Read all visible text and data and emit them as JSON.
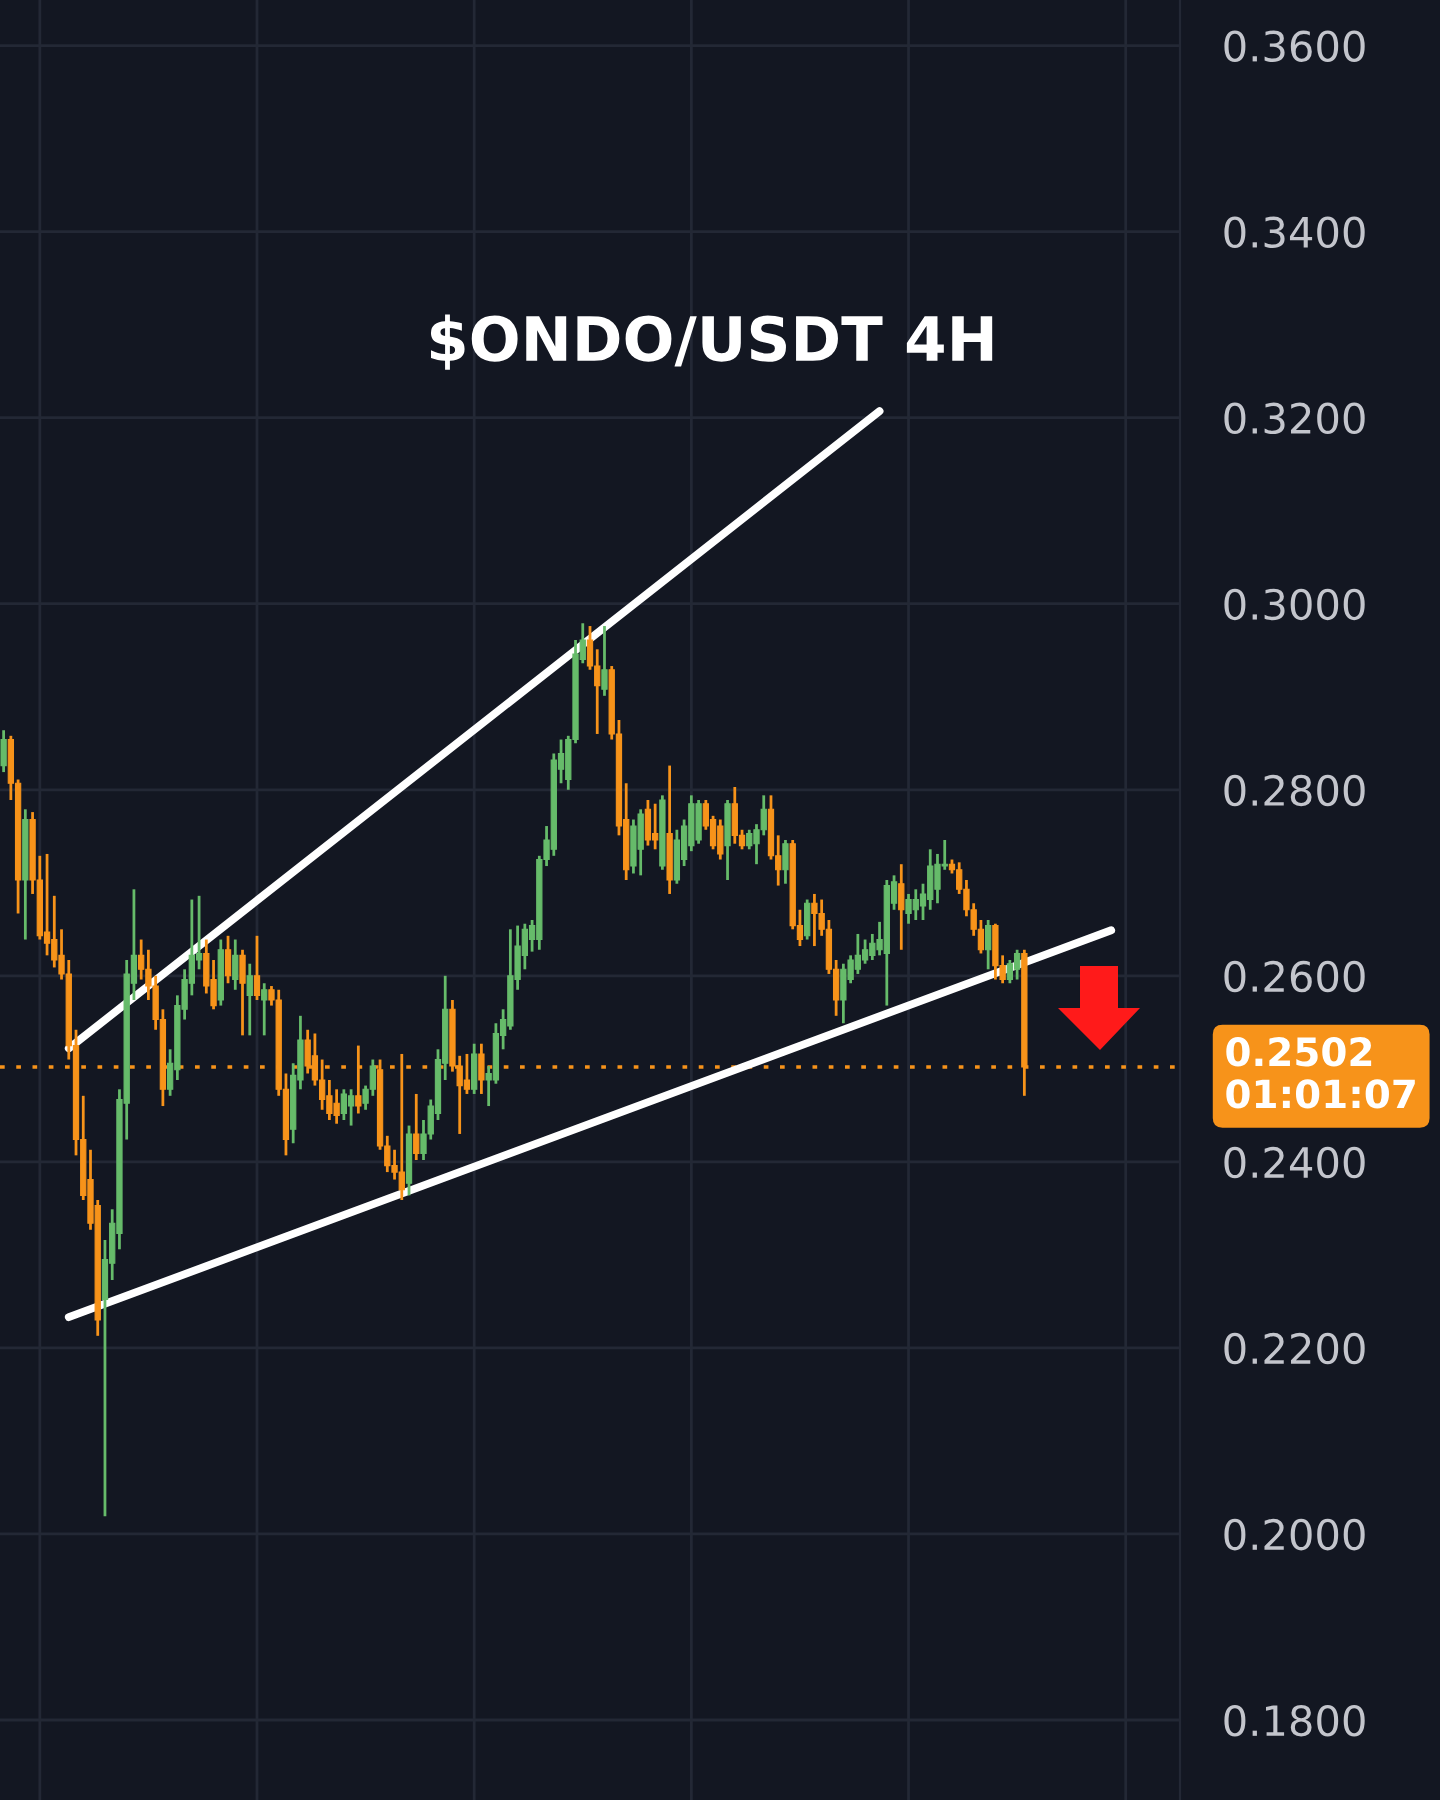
{
  "chart_data": {
    "type": "candlestick",
    "title": "$ONDO/USDT 4H",
    "categories": [
      null,
      null,
      null,
      null,
      null,
      null,
      null,
      null,
      null,
      null,
      null,
      null,
      null,
      null,
      null,
      null,
      null,
      null,
      null,
      null,
      null,
      null,
      null,
      null,
      null,
      null,
      null,
      null,
      null,
      null,
      null,
      null,
      null,
      null,
      null,
      null,
      null,
      null,
      null,
      null,
      null,
      null,
      null,
      null,
      null,
      null,
      null,
      null,
      null,
      null,
      null,
      null,
      null,
      null,
      null,
      null,
      null,
      null,
      null,
      null,
      null,
      null,
      null,
      null,
      null,
      null,
      null,
      null,
      null,
      null,
      null,
      null,
      null,
      null,
      null,
      null,
      null,
      null,
      null,
      null,
      null,
      null,
      null,
      null,
      null,
      null,
      null,
      null,
      null,
      null,
      null,
      null,
      null,
      null,
      null,
      null,
      null,
      null,
      null,
      null,
      null,
      null,
      null,
      null,
      null,
      null,
      null,
      null,
      null,
      null,
      null,
      null,
      null,
      null,
      null,
      null,
      null,
      null,
      null,
      null,
      null,
      null,
      null,
      null,
      null,
      null,
      null,
      null,
      null,
      null,
      null,
      null,
      null,
      null,
      null,
      null,
      null,
      null,
      null,
      null,
      null,
      null,
      null,
      null,
      null,
      null,
      null,
      null,
      null,
      null,
      null,
      null,
      null,
      null,
      null,
      null,
      null,
      null,
      null,
      null,
      null,
      null,
      null
    ],
    "ohlc": [
      [
        0.2826,
        0.2864,
        0.2819,
        0.2854
      ],
      [
        0.2854,
        0.2858,
        0.2789,
        0.2807
      ],
      [
        0.2807,
        0.2811,
        0.2667,
        0.2703
      ],
      [
        0.2703,
        0.2779,
        0.2639,
        0.2768
      ],
      [
        0.2768,
        0.2776,
        0.2688,
        0.2703
      ],
      [
        0.2703,
        0.2729,
        0.2639,
        0.2643
      ],
      [
        0.2647,
        0.2731,
        0.2622,
        0.2635
      ],
      [
        0.2639,
        0.2686,
        0.2609,
        0.2617
      ],
      [
        0.2622,
        0.265,
        0.2596,
        0.2602
      ],
      [
        0.2602,
        0.2617,
        0.251,
        0.2525
      ],
      [
        0.2525,
        0.2542,
        0.2407,
        0.2424
      ],
      [
        0.2424,
        0.2471,
        0.2359,
        0.2364
      ],
      [
        0.2381,
        0.2413,
        0.2327,
        0.2334
      ],
      [
        0.2353,
        0.2359,
        0.2213,
        0.223
      ],
      [
        0.2252,
        0.2316,
        0.2019,
        0.2295
      ],
      [
        0.2291,
        0.2349,
        0.2273,
        0.2334
      ],
      [
        0.2323,
        0.2478,
        0.2306,
        0.2467
      ],
      [
        0.2463,
        0.2617,
        0.2424,
        0.2602
      ],
      [
        0.2592,
        0.2693,
        0.2574,
        0.2622
      ],
      [
        0.2622,
        0.2639,
        0.2596,
        0.2607
      ],
      [
        0.2607,
        0.2628,
        0.2574,
        0.2589
      ],
      [
        0.2589,
        0.26,
        0.2542,
        0.2553
      ],
      [
        0.2553,
        0.2564,
        0.246,
        0.2478
      ],
      [
        0.2478,
        0.2521,
        0.2471,
        0.2506
      ],
      [
        0.2499,
        0.2579,
        0.2488,
        0.2568
      ],
      [
        0.2564,
        0.2607,
        0.2553,
        0.2596
      ],
      [
        0.2592,
        0.2682,
        0.2579,
        0.2622
      ],
      [
        0.2617,
        0.2686,
        0.2607,
        0.2624
      ],
      [
        0.2624,
        0.2639,
        0.2581,
        0.2589
      ],
      [
        0.2596,
        0.2617,
        0.2564,
        0.2568
      ],
      [
        0.2574,
        0.2639,
        0.2568,
        0.2628
      ],
      [
        0.2628,
        0.2643,
        0.2592,
        0.26
      ],
      [
        0.2596,
        0.2639,
        0.2585,
        0.2622
      ],
      [
        0.2622,
        0.2628,
        0.2536,
        0.2592
      ],
      [
        0.2579,
        0.2613,
        0.2536,
        0.26
      ],
      [
        0.26,
        0.2643,
        0.2574,
        0.2579
      ],
      [
        0.2574,
        0.2592,
        0.2536,
        0.2585
      ],
      [
        0.2585,
        0.2589,
        0.2568,
        0.2574
      ],
      [
        0.2574,
        0.2585,
        0.2471,
        0.2478
      ],
      [
        0.2478,
        0.2495,
        0.2407,
        0.2424
      ],
      [
        0.2435,
        0.2506,
        0.242,
        0.2493
      ],
      [
        0.2488,
        0.2557,
        0.2478,
        0.2531
      ],
      [
        0.2531,
        0.2542,
        0.2495,
        0.2503
      ],
      [
        0.2514,
        0.2538,
        0.2482,
        0.2488
      ],
      [
        0.2488,
        0.251,
        0.2456,
        0.2467
      ],
      [
        0.2471,
        0.2488,
        0.2445,
        0.2452
      ],
      [
        0.2463,
        0.2478,
        0.2441,
        0.245
      ],
      [
        0.2452,
        0.2478,
        0.2445,
        0.2473
      ],
      [
        0.246,
        0.2478,
        0.2439,
        0.2471
      ],
      [
        0.2471,
        0.2525,
        0.2452,
        0.246
      ],
      [
        0.2463,
        0.2482,
        0.2456,
        0.2478
      ],
      [
        0.2478,
        0.251,
        0.2471,
        0.2503
      ],
      [
        0.2499,
        0.251,
        0.2413,
        0.2417
      ],
      [
        0.2417,
        0.2428,
        0.2389,
        0.2396
      ],
      [
        0.2396,
        0.2413,
        0.2381,
        0.2389
      ],
      [
        0.2389,
        0.2516,
        0.2359,
        0.237
      ],
      [
        0.2377,
        0.2439,
        0.2364,
        0.243
      ],
      [
        0.243,
        0.2473,
        0.2402,
        0.2409
      ],
      [
        0.2409,
        0.2445,
        0.2402,
        0.243
      ],
      [
        0.243,
        0.2467,
        0.2424,
        0.246
      ],
      [
        0.2452,
        0.2521,
        0.2445,
        0.251
      ],
      [
        0.2506,
        0.26,
        0.2488,
        0.2564
      ],
      [
        0.2564,
        0.2574,
        0.2497,
        0.2503
      ],
      [
        0.2503,
        0.2514,
        0.243,
        0.2482
      ],
      [
        0.2488,
        0.2516,
        0.2473,
        0.2478
      ],
      [
        0.2478,
        0.2527,
        0.2473,
        0.2516
      ],
      [
        0.2516,
        0.2527,
        0.2473,
        0.2488
      ],
      [
        0.2488,
        0.2503,
        0.246,
        0.2495
      ],
      [
        0.2488,
        0.2549,
        0.2484,
        0.2538
      ],
      [
        0.2536,
        0.2564,
        0.2521,
        0.2553
      ],
      [
        0.2546,
        0.265,
        0.2542,
        0.26
      ],
      [
        0.2596,
        0.2654,
        0.2585,
        0.2632
      ],
      [
        0.2622,
        0.2656,
        0.2607,
        0.265
      ],
      [
        0.2639,
        0.266,
        0.2626,
        0.2654
      ],
      [
        0.2639,
        0.2729,
        0.2628,
        0.2725
      ],
      [
        0.2725,
        0.2761,
        0.2718,
        0.2746
      ],
      [
        0.2736,
        0.2839,
        0.2729,
        0.2832
      ],
      [
        0.2822,
        0.2854,
        0.2807,
        0.2839
      ],
      [
        0.2811,
        0.2858,
        0.28,
        0.2854
      ],
      [
        0.2854,
        0.2961,
        0.285,
        0.2946
      ],
      [
        0.294,
        0.2979,
        0.2936,
        0.2961
      ],
      [
        0.2961,
        0.2976,
        0.2929,
        0.2933
      ],
      [
        0.2933,
        0.2951,
        0.286,
        0.2912
      ],
      [
        0.2908,
        0.2976,
        0.2901,
        0.2929
      ],
      [
        0.2929,
        0.2933,
        0.2854,
        0.286
      ],
      [
        0.286,
        0.2875,
        0.2751,
        0.2761
      ],
      [
        0.2768,
        0.2807,
        0.2703,
        0.2714
      ],
      [
        0.2718,
        0.2768,
        0.271,
        0.2761
      ],
      [
        0.2736,
        0.2779,
        0.2708,
        0.2774
      ],
      [
        0.2779,
        0.2789,
        0.274,
        0.2746
      ],
      [
        0.2753,
        0.2785,
        0.2736,
        0.2746
      ],
      [
        0.2718,
        0.2794,
        0.2714,
        0.2789
      ],
      [
        0.2753,
        0.2826,
        0.2688,
        0.2703
      ],
      [
        0.2703,
        0.2757,
        0.2699,
        0.2746
      ],
      [
        0.2725,
        0.2768,
        0.2718,
        0.2761
      ],
      [
        0.274,
        0.2794,
        0.2734,
        0.2785
      ],
      [
        0.2746,
        0.2789,
        0.2742,
        0.2785
      ],
      [
        0.2785,
        0.2789,
        0.2757,
        0.2761
      ],
      [
        0.2768,
        0.2772,
        0.2736,
        0.274
      ],
      [
        0.2761,
        0.2768,
        0.2725,
        0.2731
      ],
      [
        0.274,
        0.2789,
        0.2703,
        0.2785
      ],
      [
        0.2785,
        0.2803,
        0.2742,
        0.2751
      ],
      [
        0.2751,
        0.2757,
        0.2736,
        0.274
      ],
      [
        0.274,
        0.2757,
        0.2736,
        0.2753
      ],
      [
        0.2742,
        0.2763,
        0.272,
        0.2757
      ],
      [
        0.2757,
        0.2794,
        0.2751,
        0.2779
      ],
      [
        0.2779,
        0.2794,
        0.2725,
        0.2729
      ],
      [
        0.2729,
        0.2751,
        0.2697,
        0.2714
      ],
      [
        0.2714,
        0.2746,
        0.2699,
        0.2742
      ],
      [
        0.2742,
        0.2746,
        0.265,
        0.2654
      ],
      [
        0.2654,
        0.2671,
        0.2632,
        0.2639
      ],
      [
        0.2643,
        0.2682,
        0.2639,
        0.2678
      ],
      [
        0.2678,
        0.2688,
        0.2632,
        0.2667
      ],
      [
        0.2667,
        0.2682,
        0.2643,
        0.265
      ],
      [
        0.265,
        0.266,
        0.2602,
        0.2607
      ],
      [
        0.2607,
        0.2617,
        0.2557,
        0.2574
      ],
      [
        0.2574,
        0.2613,
        0.2549,
        0.2607
      ],
      [
        0.2596,
        0.2622,
        0.2592,
        0.2617
      ],
      [
        0.2607,
        0.2645,
        0.2602,
        0.2622
      ],
      [
        0.2617,
        0.2639,
        0.2613,
        0.2628
      ],
      [
        0.2622,
        0.2645,
        0.2617,
        0.2635
      ],
      [
        0.2628,
        0.2658,
        0.2622,
        0.2639
      ],
      [
        0.2624,
        0.2703,
        0.2568,
        0.2697
      ],
      [
        0.2678,
        0.2708,
        0.2671,
        0.2701
      ],
      [
        0.2699,
        0.272,
        0.2628,
        0.2671
      ],
      [
        0.2667,
        0.2688,
        0.2656,
        0.2682
      ],
      [
        0.2671,
        0.2693,
        0.266,
        0.2682
      ],
      [
        0.2675,
        0.2699,
        0.266,
        0.2688
      ],
      [
        0.2682,
        0.2736,
        0.2671,
        0.2718
      ],
      [
        0.2693,
        0.2731,
        0.2678,
        0.272
      ],
      [
        0.2718,
        0.2746,
        0.2714,
        0.272
      ],
      [
        0.272,
        0.2725,
        0.271,
        0.2714
      ],
      [
        0.2714,
        0.2722,
        0.2688,
        0.2693
      ],
      [
        0.2693,
        0.2703,
        0.2664,
        0.2671
      ],
      [
        0.2671,
        0.2678,
        0.2643,
        0.265
      ],
      [
        0.265,
        0.266,
        0.2624,
        0.2628
      ],
      [
        0.2628,
        0.266,
        0.2607,
        0.2654
      ],
      [
        0.2654,
        0.2656,
        0.2596,
        0.2611
      ],
      [
        0.2611,
        0.2622,
        0.2592,
        0.2596
      ],
      [
        0.2596,
        0.2617,
        0.2592,
        0.2613
      ],
      [
        0.2607,
        0.2628,
        0.2596,
        0.2624
      ],
      [
        0.2624,
        0.2628,
        0.2471,
        0.2502
      ],
      null,
      null,
      null,
      null,
      null,
      null,
      null,
      null,
      null,
      null,
      null,
      null,
      null,
      null,
      null,
      null,
      null,
      null,
      null,
      null,
      null
    ],
    "colors": [
      "#66bb6a",
      "#f7931a",
      "#f7931a",
      "#66bb6a",
      "#f7931a",
      "#f7931a",
      "#f7931a",
      "#f7931a",
      "#f7931a",
      "#f7931a",
      "#f7931a",
      "#f7931a",
      "#f7931a",
      "#f7931a",
      "#66bb6a",
      "#66bb6a",
      "#66bb6a",
      "#66bb6a",
      "#66bb6a",
      "#f7931a",
      "#f7931a",
      "#f7931a",
      "#f7931a",
      "#66bb6a",
      "#66bb6a",
      "#66bb6a",
      "#66bb6a",
      "#66bb6a",
      "#f7931a",
      "#f7931a",
      "#66bb6a",
      "#f7931a",
      "#66bb6a",
      "#f7931a",
      "#66bb6a",
      "#f7931a",
      "#66bb6a",
      "#f7931a",
      "#f7931a",
      "#f7931a",
      "#66bb6a",
      "#66bb6a",
      "#f7931a",
      "#f7931a",
      "#f7931a",
      "#f7931a",
      "#f7931a",
      "#66bb6a",
      "#66bb6a",
      "#f7931a",
      "#66bb6a",
      "#66bb6a",
      "#f7931a",
      "#f7931a",
      "#f7931a",
      "#f7931a",
      "#66bb6a",
      "#f7931a",
      "#66bb6a",
      "#66bb6a",
      "#66bb6a",
      "#66bb6a",
      "#f7931a",
      "#f7931a",
      "#f7931a",
      "#66bb6a",
      "#f7931a",
      "#66bb6a",
      "#66bb6a",
      "#66bb6a",
      "#66bb6a",
      "#66bb6a",
      "#66bb6a",
      "#66bb6a",
      "#66bb6a",
      "#66bb6a",
      "#66bb6a",
      "#66bb6a",
      "#66bb6a",
      "#66bb6a",
      "#66bb6a",
      "#f7931a",
      "#f7931a",
      "#66bb6a",
      "#f7931a",
      "#f7931a",
      "#f7931a",
      "#66bb6a",
      "#66bb6a",
      "#f7931a",
      "#f7931a",
      "#66bb6a",
      "#f7931a",
      "#66bb6a",
      "#66bb6a",
      "#66bb6a",
      "#66bb6a",
      "#f7931a",
      "#f7931a",
      "#f7931a",
      "#66bb6a",
      "#f7931a",
      "#f7931a",
      "#66bb6a",
      "#66bb6a",
      "#66bb6a",
      "#f7931a",
      "#f7931a",
      "#66bb6a",
      "#f7931a",
      "#f7931a",
      "#66bb6a",
      "#f7931a",
      "#f7931a",
      "#f7931a",
      "#f7931a",
      "#66bb6a",
      "#66bb6a",
      "#66bb6a",
      "#66bb6a",
      "#66bb6a",
      "#66bb6a",
      "#66bb6a",
      "#66bb6a",
      "#f7931a",
      "#66bb6a",
      "#66bb6a",
      "#66bb6a",
      "#66bb6a",
      "#66bb6a",
      "#66bb6a",
      "#f7931a",
      "#f7931a",
      "#f7931a",
      "#f7931a",
      "#f7931a",
      "#66bb6a",
      "#f7931a",
      "#f7931a",
      "#66bb6a",
      "#66bb6a",
      "#f7931a",
      null,
      null,
      null,
      null,
      null,
      null,
      null,
      null,
      null,
      null,
      null,
      null,
      null,
      null,
      null,
      null,
      null,
      null,
      null,
      null,
      null
    ],
    "series": [
      {
        "type": "line",
        "color": "#ffffff",
        "values": [
          null,
          null,
          null,
          null,
          null,
          null,
          null,
          null,
          null,
          0.2233,
          null,
          null,
          null,
          null,
          null,
          null,
          null,
          null,
          null,
          null,
          null,
          null,
          null,
          null,
          null,
          null,
          null,
          null,
          null,
          null,
          null,
          null,
          null,
          null,
          null,
          null,
          null,
          null,
          null,
          null,
          null,
          null,
          null,
          null,
          null,
          null,
          null,
          null,
          null,
          null,
          null,
          null,
          null,
          null,
          null,
          null,
          null,
          null,
          null,
          null,
          null,
          null,
          null,
          null,
          null,
          null,
          null,
          null,
          null,
          null,
          null,
          null,
          null,
          null,
          null,
          null,
          null,
          null,
          null,
          null,
          null,
          null,
          null,
          null,
          null,
          null,
          null,
          null,
          null,
          null,
          null,
          null,
          null,
          null,
          null,
          null,
          null,
          null,
          null,
          null,
          null,
          null,
          null,
          null,
          null,
          null,
          null,
          null,
          null,
          null,
          null,
          null,
          null,
          null,
          null,
          null,
          null,
          null,
          null,
          null,
          null,
          null,
          null,
          null,
          null,
          null,
          null,
          null,
          null,
          null,
          null,
          null,
          null,
          null,
          null,
          null,
          null,
          null,
          null,
          null,
          null,
          null,
          null,
          null,
          null,
          null,
          null,
          null,
          null,
          null,
          null,
          null,
          null,
          0.2649,
          null,
          null,
          null,
          null,
          null,
          null,
          null,
          null,
          null
        ]
      },
      {
        "type": "line",
        "color": "#ffffff",
        "values": [
          null,
          null,
          null,
          null,
          null,
          null,
          null,
          null,
          null,
          0.2522,
          null,
          null,
          null,
          null,
          null,
          null,
          null,
          null,
          null,
          null,
          null,
          null,
          null,
          null,
          null,
          null,
          null,
          null,
          null,
          null,
          null,
          null,
          null,
          null,
          null,
          null,
          null,
          null,
          null,
          null,
          null,
          null,
          null,
          null,
          null,
          null,
          null,
          null,
          null,
          null,
          null,
          null,
          null,
          null,
          null,
          null,
          null,
          null,
          null,
          null,
          null,
          null,
          null,
          null,
          null,
          null,
          null,
          null,
          null,
          null,
          null,
          null,
          null,
          null,
          null,
          null,
          null,
          null,
          null,
          null,
          null,
          null,
          null,
          null,
          null,
          null,
          null,
          null,
          null,
          null,
          null,
          null,
          null,
          null,
          null,
          null,
          null,
          null,
          null,
          null,
          null,
          null,
          null,
          null,
          null,
          null,
          null,
          null,
          null,
          null,
          null,
          null,
          null,
          null,
          null,
          null,
          null,
          null,
          null,
          null,
          null,
          0.3207,
          null,
          null,
          null,
          null,
          null,
          null,
          null,
          null,
          null,
          null,
          null,
          null,
          null,
          null,
          null,
          null,
          null,
          null,
          null,
          null,
          null,
          null,
          null,
          null,
          null,
          null,
          null,
          null,
          null,
          null,
          null,
          null,
          null,
          null,
          null,
          null,
          null,
          null,
          null,
          null,
          null
        ]
      }
    ],
    "ylim": [
      0.1714,
      0.3649
    ],
    "yticks": [
      {
        "value": 0.18,
        "label": "0.1800"
      },
      {
        "value": 0.2,
        "label": "0.2000"
      },
      {
        "value": 0.22,
        "label": "0.2200"
      },
      {
        "value": 0.24,
        "label": "0.2400"
      },
      {
        "value": 0.26,
        "label": "0.2600"
      },
      {
        "value": 0.28,
        "label": "0.2800"
      },
      {
        "value": 0.3,
        "label": "0.3000"
      },
      {
        "value": 0.32,
        "label": "0.3200"
      },
      {
        "value": 0.34,
        "label": "0.3400"
      },
      {
        "value": 0.36,
        "label": "0.3600"
      }
    ],
    "ref_lines": [
      {
        "axis": "y",
        "value": 0.2502,
        "label": "0.2502\n01:01:07",
        "color": "#f7931a",
        "line_style": "dotted"
      }
    ],
    "grid": true,
    "tick_labels": "y"
  }
}
